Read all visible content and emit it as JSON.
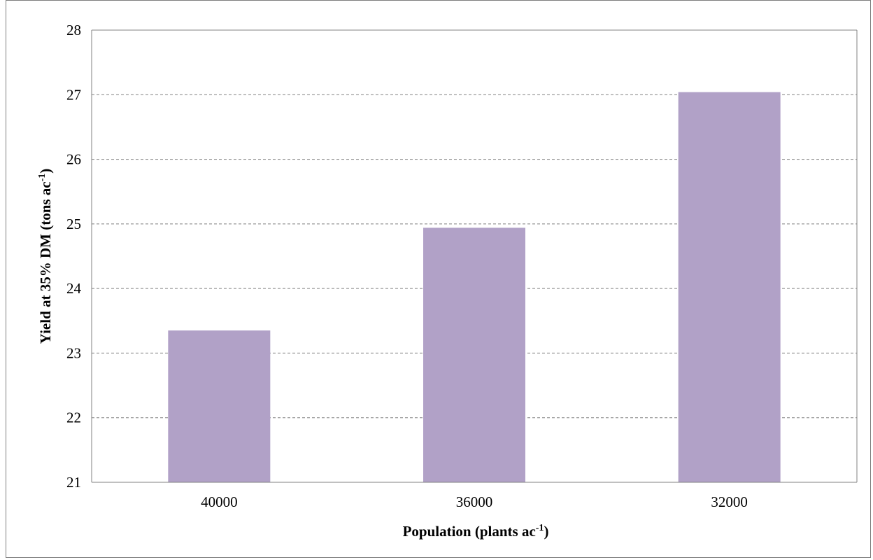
{
  "chart_data": {
    "type": "bar",
    "categories": [
      "40000",
      "36000",
      "32000"
    ],
    "values": [
      23.35,
      24.94,
      27.04
    ],
    "ylim": [
      21,
      28
    ],
    "yticks": [
      "21",
      "22",
      "23",
      "24",
      "25",
      "26",
      "27",
      "28"
    ],
    "xlabel": {
      "before": "Population (plants ac",
      "sup": "-1",
      "after": ")"
    },
    "ylabel": {
      "before": "Yield at 35% DM (tons  ac",
      "sup": "-1",
      "after": ")"
    },
    "grid": true,
    "grid_style": "dashed",
    "legend": "none",
    "colors": {
      "bar": "#b1a1c7",
      "grid": "#808080",
      "axis": "#808080",
      "border": "#7f7f7f"
    }
  }
}
